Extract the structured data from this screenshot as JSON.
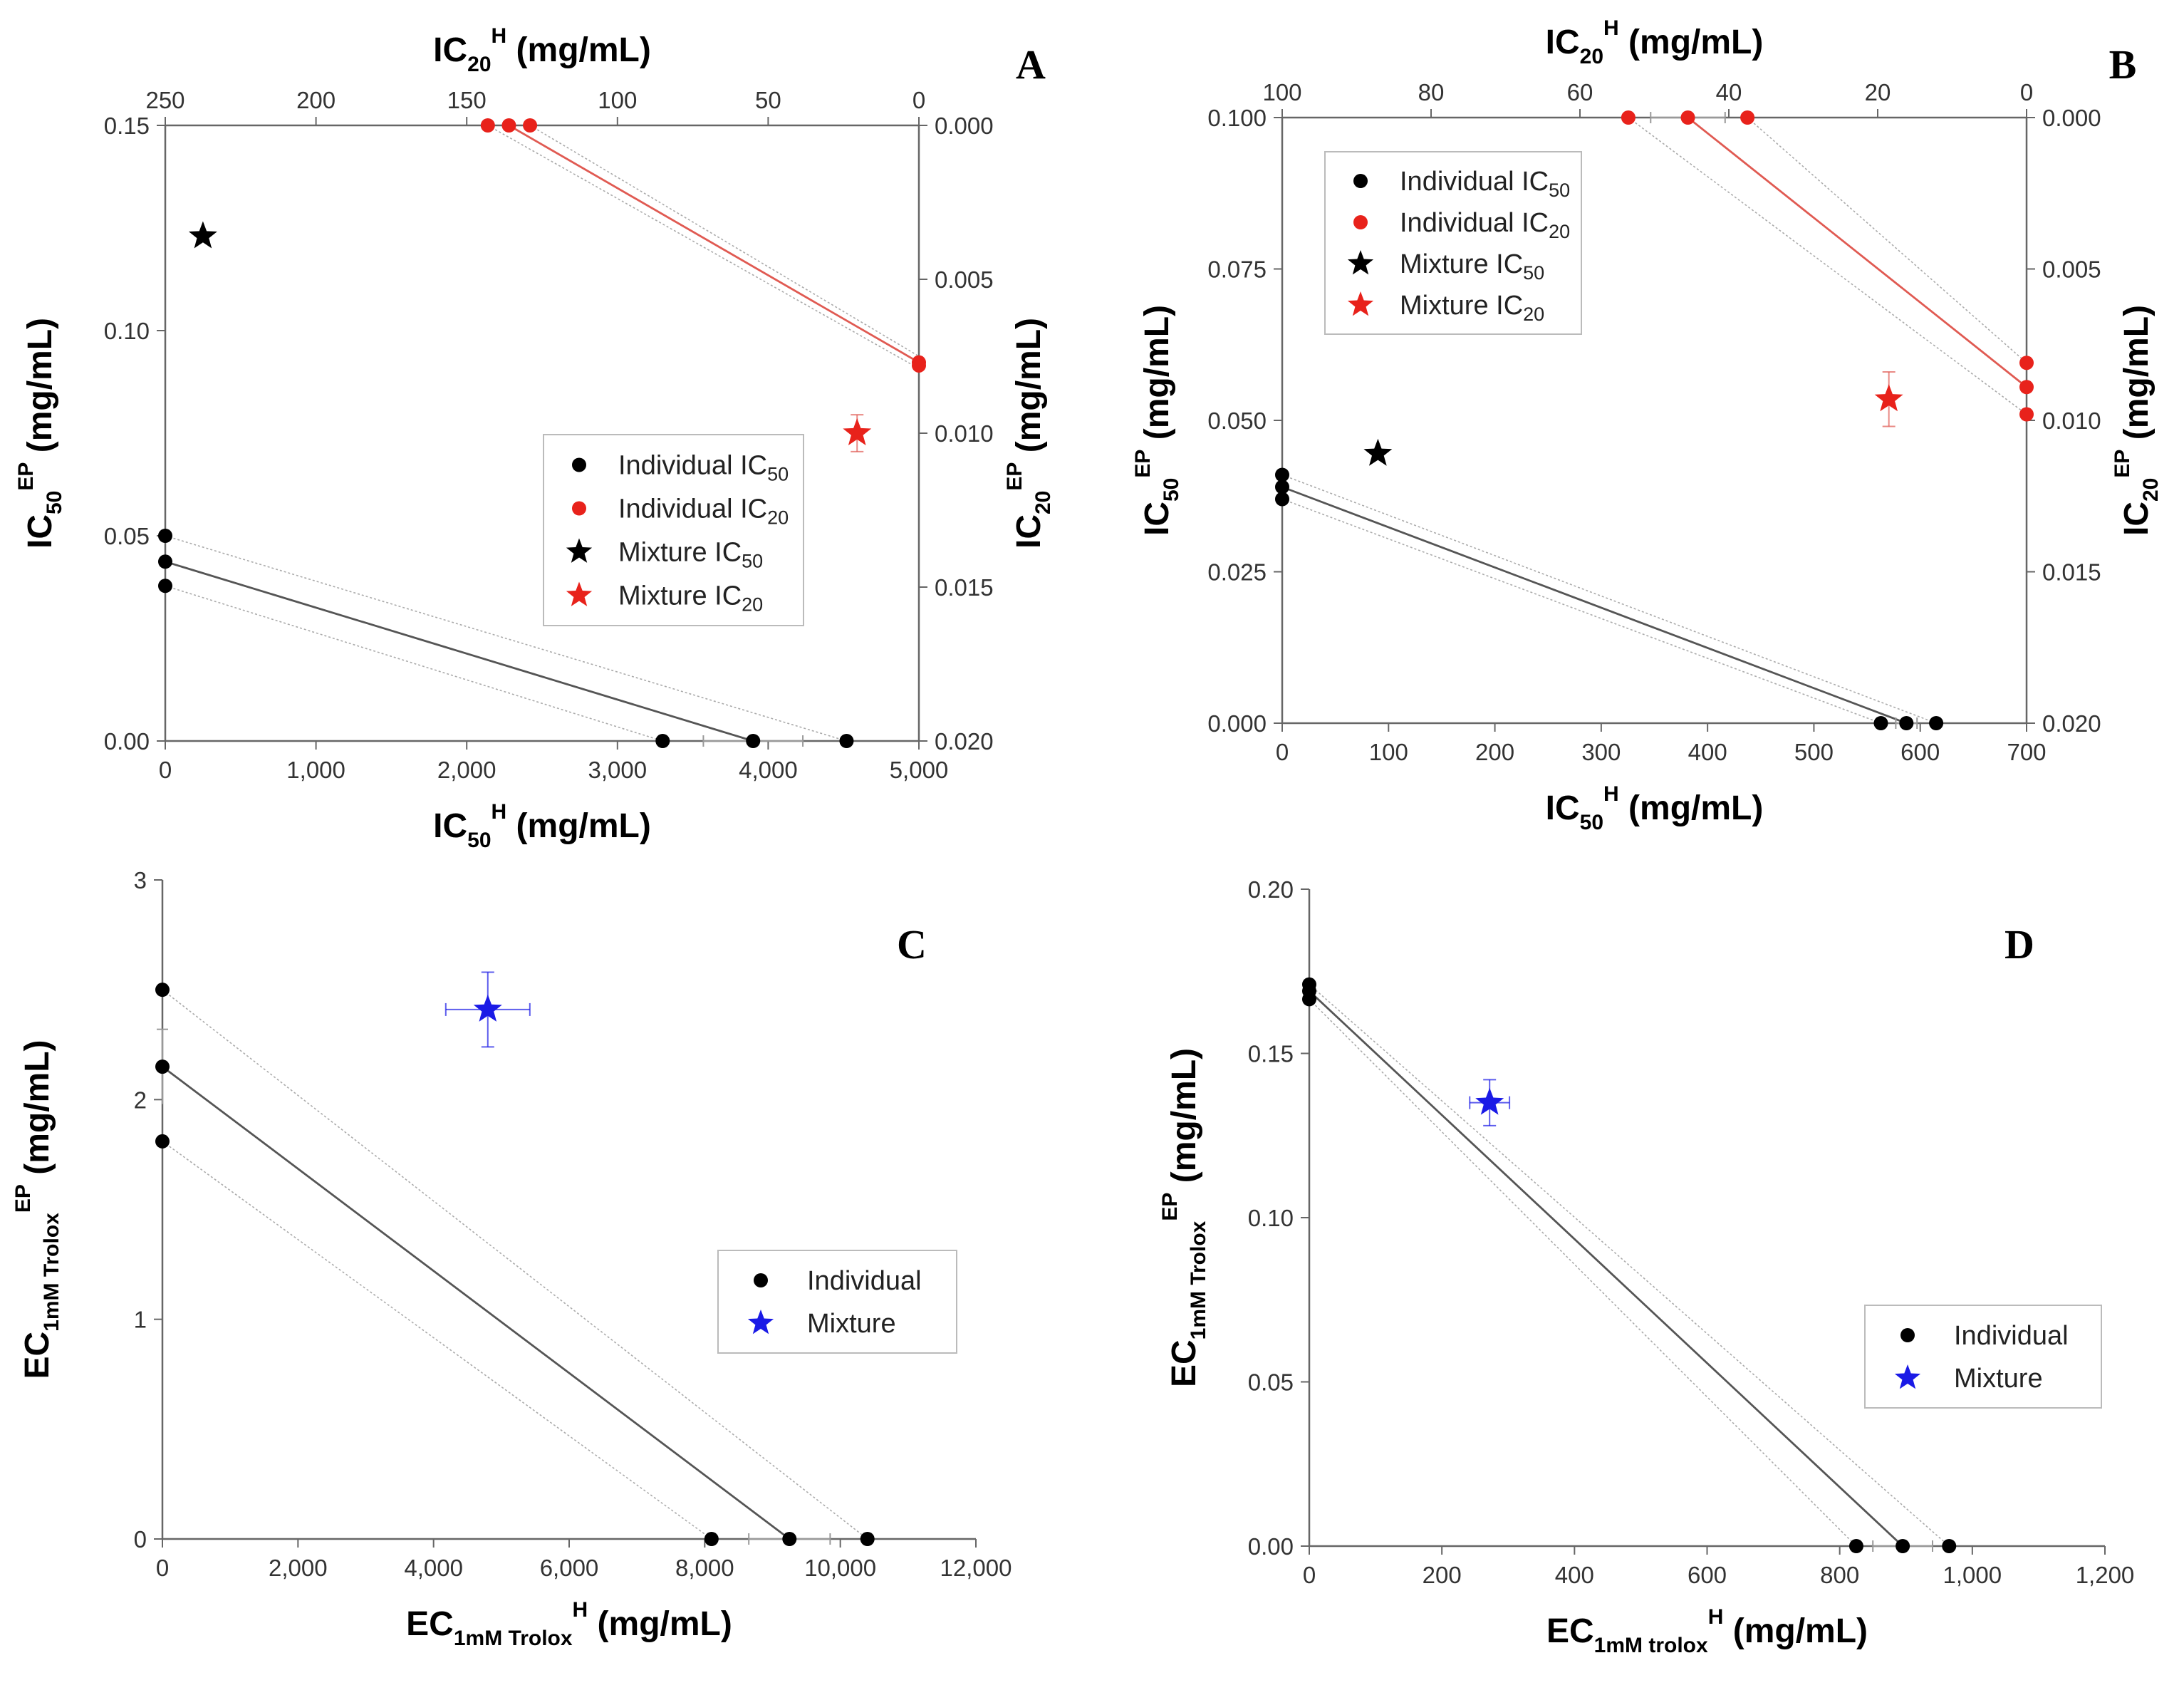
{
  "chart_data": [
    {
      "panel": "A",
      "type": "scatter",
      "x_axis_bottom": {
        "label": "IC",
        "label_sub": "50",
        "label_sup": "H",
        "label_tail": " (mg/mL)",
        "range": [
          0,
          5000
        ],
        "ticks": [
          "0",
          "1,000",
          "2,000",
          "3,000",
          "4,000",
          "5,000"
        ]
      },
      "x_axis_top": {
        "label": "IC",
        "label_sub": "20",
        "label_sup": "H",
        "label_tail": " (mg/mL)",
        "range": [
          250,
          0
        ],
        "ticks": [
          "250",
          "200",
          "150",
          "100",
          "50",
          "0"
        ]
      },
      "y_axis_left": {
        "label": "IC",
        "label_sub": "50",
        "label_sup": "EP",
        "label_tail": " (mg/mL)",
        "range": [
          0,
          0.15
        ],
        "ticks": [
          "0.00",
          "0.05",
          "0.10",
          "0.15"
        ]
      },
      "y_axis_right": {
        "label": "IC",
        "label_sub": "20",
        "label_sup": "EP",
        "label_tail": " (mg/mL)",
        "range": [
          0.02,
          0
        ],
        "ticks": [
          "0.000",
          "0.005",
          "0.010",
          "0.015",
          "0.020"
        ]
      },
      "legend": {
        "position": "center-right",
        "entries": [
          {
            "text": "Individual IC",
            "sub": "50",
            "marker": "circle",
            "color": "#000000"
          },
          {
            "text": "Individual IC",
            "sub": "20",
            "marker": "circle",
            "color": "#e8221b"
          },
          {
            "text": "Mixture IC",
            "sub": "50",
            "marker": "star",
            "color": "#000000"
          },
          {
            "text": "Mixture IC",
            "sub": "20",
            "marker": "star",
            "color": "#e8221b"
          }
        ]
      },
      "series": [
        {
          "name": "Individual IC50",
          "axes": "bottom-left",
          "color": "#000000",
          "marker": "circle",
          "points": [
            [
              0,
              0.05
            ],
            [
              0,
              0.0437
            ],
            [
              0,
              0.0378
            ],
            [
              3300,
              0
            ],
            [
              3900,
              0
            ],
            [
              4520,
              0
            ]
          ],
          "line": [
            [
              0,
              0.0437
            ],
            [
              3900,
              0
            ]
          ],
          "ci_upper": [
            [
              0,
              0.05
            ],
            [
              4520,
              0
            ]
          ],
          "ci_lower": [
            [
              0,
              0.0378
            ],
            [
              3300,
              0
            ]
          ],
          "xerr": [
            {
              "x": 3900,
              "y": 0,
              "err": 330
            }
          ]
        },
        {
          "name": "Individual IC20",
          "axes": "top-right",
          "color": "#e8221b",
          "marker": "circle",
          "points": [
            [
              143,
              0
            ],
            [
              136,
              0
            ],
            [
              129,
              0
            ],
            [
              0,
              0.0077
            ],
            [
              0,
              0.0078
            ]
          ],
          "line": [
            [
              136,
              0
            ],
            [
              0,
              0.0077
            ]
          ],
          "ci_upper": [
            [
              129,
              0
            ],
            [
              0,
              0.0075
            ]
          ],
          "ci_lower": [
            [
              143,
              0
            ],
            [
              0,
              0.0079
            ]
          ]
        },
        {
          "name": "Mixture IC50",
          "axes": "bottom-left",
          "color": "#000000",
          "marker": "star",
          "points": [
            [
              250,
              0.123
            ]
          ]
        },
        {
          "name": "Mixture IC20",
          "axes": "top-right",
          "color": "#e8221b",
          "marker": "star",
          "points": [
            [
              20.5,
              0.01
            ]
          ],
          "yerr": [
            0.0006
          ]
        }
      ]
    },
    {
      "panel": "B",
      "type": "scatter",
      "x_axis_bottom": {
        "label": "IC",
        "label_sub": "50",
        "label_sup": "H",
        "label_tail": " (mg/mL)",
        "range": [
          0,
          700
        ],
        "ticks": [
          "0",
          "100",
          "200",
          "300",
          "400",
          "500",
          "600",
          "700"
        ]
      },
      "x_axis_top": {
        "label": "IC",
        "label_sub": "20",
        "label_sup": "H",
        "label_tail": " (mg/mL)",
        "range": [
          100,
          0
        ],
        "ticks": [
          "100",
          "80",
          "60",
          "40",
          "20",
          "0"
        ]
      },
      "y_axis_left": {
        "label": "IC",
        "label_sub": "50",
        "label_sup": "EP",
        "label_tail": " (mg/mL)",
        "range": [
          0,
          0.1
        ],
        "ticks": [
          "0.000",
          "0.025",
          "0.050",
          "0.075",
          "0.100"
        ]
      },
      "y_axis_right": {
        "label": "IC",
        "label_sub": "20",
        "label_sup": "EP",
        "label_tail": " (mg/mL)",
        "range": [
          0.02,
          0
        ],
        "ticks": [
          "0.000",
          "0.005",
          "0.010",
          "0.015",
          "0.020"
        ]
      },
      "legend": {
        "position": "top-left",
        "entries": [
          {
            "text": "Individual IC",
            "sub": "50",
            "marker": "circle",
            "color": "#000000"
          },
          {
            "text": "Individual IC",
            "sub": "20",
            "marker": "circle",
            "color": "#e8221b"
          },
          {
            "text": "Mixture IC",
            "sub": "50",
            "marker": "star",
            "color": "#000000"
          },
          {
            "text": "Mixture IC",
            "sub": "20",
            "marker": "star",
            "color": "#e8221b"
          }
        ]
      },
      "series": [
        {
          "name": "Individual IC50",
          "axes": "bottom-left",
          "color": "#000000",
          "marker": "circle",
          "points": [
            [
              0,
              0.041
            ],
            [
              0,
              0.039
            ],
            [
              0,
              0.037
            ],
            [
              563,
              0
            ],
            [
              587,
              0
            ],
            [
              615,
              0
            ]
          ],
          "line": [
            [
              0,
              0.039
            ],
            [
              587,
              0
            ]
          ],
          "ci_upper": [
            [
              0,
              0.041
            ],
            [
              615,
              0
            ]
          ],
          "ci_lower": [
            [
              0,
              0.037
            ],
            [
              563,
              0
            ]
          ],
          "xerr": [
            {
              "x": 587,
              "y": 0,
              "err": 10
            }
          ]
        },
        {
          "name": "Individual IC20",
          "axes": "top-right",
          "color": "#e8221b",
          "marker": "circle",
          "points": [
            [
              53.5,
              0
            ],
            [
              45.5,
              0
            ],
            [
              37.5,
              0
            ],
            [
              0,
              0.0081
            ],
            [
              0,
              0.0089
            ],
            [
              0,
              0.0098
            ]
          ],
          "line": [
            [
              45.5,
              0
            ],
            [
              0,
              0.0089
            ]
          ],
          "ci_upper": [
            [
              37.5,
              0
            ],
            [
              0,
              0.0081
            ]
          ],
          "ci_lower": [
            [
              53.5,
              0
            ],
            [
              0,
              0.0098
            ]
          ],
          "xerr": [
            {
              "x": 45.5,
              "y": 0,
              "err": 5
            }
          ]
        },
        {
          "name": "Mixture IC50",
          "axes": "bottom-left",
          "color": "#000000",
          "marker": "star",
          "points": [
            [
              90,
              0.0445
            ]
          ]
        },
        {
          "name": "Mixture IC20",
          "axes": "top-right",
          "color": "#e8221b",
          "marker": "star",
          "points": [
            [
              18.5,
              0.0093
            ]
          ],
          "yerr": [
            0.0009
          ]
        }
      ]
    },
    {
      "panel": "C",
      "type": "scatter",
      "x_axis_bottom": {
        "label": "EC",
        "label_sub": "1mM Trolox",
        "label_sup": "H",
        "label_tail": " (mg/mL)",
        "range": [
          0,
          12000
        ],
        "ticks": [
          "0",
          "2,000",
          "4,000",
          "6,000",
          "8,000",
          "10,000",
          "12,000"
        ]
      },
      "y_axis_left": {
        "label": "EC",
        "label_sub": "1mM Trolox",
        "label_sup": "EP",
        "label_tail": " (mg/mL)",
        "range": [
          0,
          3
        ],
        "ticks": [
          "0",
          "1",
          "2",
          "3"
        ]
      },
      "legend": {
        "position": "center-right",
        "entries": [
          {
            "text": "Individual",
            "sub": "",
            "marker": "circle",
            "color": "#000000"
          },
          {
            "text": "Mixture",
            "sub": "",
            "marker": "star",
            "color": "#1a1ae6"
          }
        ]
      },
      "series": [
        {
          "name": "Individual",
          "axes": "bottom-left",
          "color": "#000000",
          "marker": "circle",
          "points": [
            [
              0,
              2.5
            ],
            [
              0,
              2.15
            ],
            [
              0,
              1.81
            ],
            [
              8100,
              0
            ],
            [
              9250,
              0
            ],
            [
              10400,
              0
            ]
          ],
          "line": [
            [
              0,
              2.15
            ],
            [
              9250,
              0
            ]
          ],
          "ci_upper": [
            [
              0,
              2.5
            ],
            [
              10400,
              0
            ]
          ],
          "ci_lower": [
            [
              0,
              1.81
            ],
            [
              8100,
              0
            ]
          ],
          "xerr": [
            {
              "x": 9250,
              "y": 0,
              "err": 600
            }
          ],
          "yerr_pts": [
            {
              "x": 0,
              "y": 2.15,
              "err": 0.17
            }
          ]
        },
        {
          "name": "Mixture",
          "axes": "bottom-left",
          "color": "#1a1ae6",
          "marker": "star",
          "points": [
            [
              4800,
              2.41
            ]
          ],
          "xerr": [
            620
          ],
          "yerr": [
            0.17
          ]
        }
      ]
    },
    {
      "panel": "D",
      "type": "scatter",
      "x_axis_bottom": {
        "label": "EC",
        "label_sub": "1mM trolox",
        "label_sup": "H",
        "label_tail": " (mg/mL)",
        "range": [
          0,
          1200
        ],
        "ticks": [
          "0",
          "200",
          "400",
          "600",
          "800",
          "1,000",
          "1,200"
        ]
      },
      "y_axis_left": {
        "label": "EC",
        "label_sub": "1mM Trolox",
        "label_sup": "EP",
        "label_tail": " (mg/mL)",
        "range": [
          0,
          0.2
        ],
        "ticks": [
          "0.00",
          "0.05",
          "0.10",
          "0.15",
          "0.20"
        ]
      },
      "legend": {
        "position": "bottom-right",
        "entries": [
          {
            "text": "Individual",
            "sub": "",
            "marker": "circle",
            "color": "#000000"
          },
          {
            "text": "Mixture",
            "sub": "",
            "marker": "star",
            "color": "#1a1ae6"
          }
        ]
      },
      "series": [
        {
          "name": "Individual",
          "axes": "bottom-left",
          "color": "#000000",
          "marker": "circle",
          "points": [
            [
              0,
              0.171
            ],
            [
              0,
              0.169
            ],
            [
              0,
              0.1665
            ],
            [
              825,
              0
            ],
            [
              895,
              0
            ],
            [
              965,
              0
            ]
          ],
          "line": [
            [
              0,
              0.169
            ],
            [
              895,
              0
            ]
          ],
          "ci_upper": [
            [
              0,
              0.171
            ],
            [
              965,
              0
            ]
          ],
          "ci_lower": [
            [
              0,
              0.1665
            ],
            [
              825,
              0
            ]
          ],
          "xerr": [
            {
              "x": 895,
              "y": 0,
              "err": 45
            }
          ]
        },
        {
          "name": "Mixture",
          "axes": "bottom-left",
          "color": "#1a1ae6",
          "marker": "star",
          "points": [
            [
              272,
              0.135
            ]
          ],
          "xerr": [
            30
          ],
          "yerr": [
            0.007
          ]
        }
      ]
    }
  ]
}
